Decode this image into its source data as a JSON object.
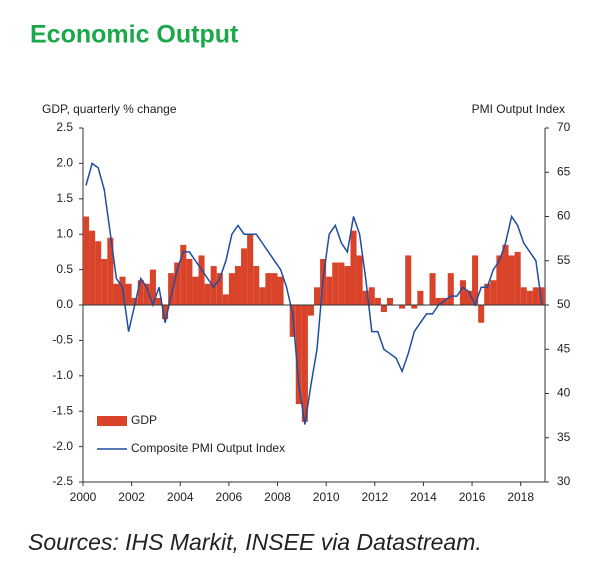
{
  "chart_data": {
    "type": "bar-line",
    "title": "Economic Output",
    "y_label": "GDP, quarterly % change",
    "y2_label": "PMI Output Index",
    "source": "Sources: IHS Markit, INSEE via Datastream.",
    "xlim": [
      2000,
      2019
    ],
    "xticks": [
      2000,
      2002,
      2004,
      2006,
      2008,
      2010,
      2012,
      2014,
      2016,
      2018
    ],
    "ylim": [
      -2.5,
      2.5
    ],
    "yticks": [
      2.5,
      {
        "value": 2,
        "label": "2.0"
      },
      1.5,
      {
        "value": 1,
        "label": "1.0"
      },
      0.5,
      {
        "value": 0,
        "label": "0.0"
      },
      -0.5,
      {
        "value": -1,
        "label": "-1.0"
      },
      -1.5,
      {
        "value": -2,
        "label": "-2.0"
      },
      -2.5
    ],
    "y2lim": [
      30,
      70
    ],
    "y2ticks": [
      70,
      65,
      60,
      55,
      50,
      45,
      40,
      35,
      30
    ],
    "legend": "lower left",
    "grid": false,
    "x": [
      2000.125,
      2000.375,
      2000.625,
      2000.875,
      2001.125,
      2001.375,
      2001.625,
      2001.875,
      2002.125,
      2002.375,
      2002.625,
      2002.875,
      2003.125,
      2003.375,
      2003.625,
      2003.875,
      2004.125,
      2004.375,
      2004.625,
      2004.875,
      2005.125,
      2005.375,
      2005.625,
      2005.875,
      2006.125,
      2006.375,
      2006.625,
      2006.875,
      2007.125,
      2007.375,
      2007.625,
      2007.875,
      2008.125,
      2008.375,
      2008.625,
      2008.875,
      2009.125,
      2009.375,
      2009.625,
      2009.875,
      2010.125,
      2010.375,
      2010.625,
      2010.875,
      2011.125,
      2011.375,
      2011.625,
      2011.875,
      2012.125,
      2012.375,
      2012.625,
      2012.875,
      2013.125,
      2013.375,
      2013.625,
      2013.875,
      2014.125,
      2014.375,
      2014.625,
      2014.875,
      2015.125,
      2015.375,
      2015.625,
      2015.875,
      2016.125,
      2016.375,
      2016.625,
      2016.875,
      2017.125,
      2017.375,
      2017.625,
      2017.875,
      2018.125,
      2018.375,
      2018.625,
      2018.875
    ],
    "series": [
      {
        "name": "GDP",
        "type": "bar",
        "color": "#d8432a",
        "values": [
          1.25,
          1.05,
          0.9,
          0.65,
          0.95,
          0.3,
          0.4,
          0.3,
          0.1,
          0.35,
          0.3,
          0.5,
          0.1,
          -0.2,
          0.45,
          0.6,
          0.85,
          0.65,
          0.4,
          0.7,
          0.3,
          0.55,
          0.45,
          0.15,
          0.45,
          0.55,
          0.8,
          1.0,
          0.55,
          0.25,
          0.45,
          0.45,
          0.4,
          0.0,
          -0.45,
          -1.4,
          -1.65,
          -0.15,
          0.25,
          0.65,
          0.4,
          0.6,
          0.6,
          0.55,
          1.05,
          0.7,
          0.2,
          0.25,
          0.1,
          -0.1,
          0.1,
          0.0,
          -0.05,
          0.7,
          -0.05,
          0.2,
          0.0,
          0.45,
          0.1,
          0.1,
          0.45,
          0.0,
          0.35,
          0.2,
          0.7,
          -0.25,
          0.3,
          0.35,
          0.7,
          0.85,
          0.7,
          0.75,
          0.25,
          0.2,
          0.25,
          0.25
        ]
      },
      {
        "name": "Composite PMI Output Index",
        "type": "line",
        "axis": "y2",
        "color": "#1f4e9e",
        "values": [
          63.5,
          66,
          65.5,
          63,
          58,
          53,
          52,
          47,
          50,
          53,
          52,
          50,
          52,
          48,
          51,
          54,
          56,
          56,
          55,
          54,
          53,
          52,
          53,
          55,
          58,
          59,
          58,
          58,
          58,
          57,
          56,
          55,
          54,
          52,
          49,
          41,
          36.5,
          41,
          45,
          53,
          58,
          59,
          57,
          56,
          60,
          58,
          53,
          47,
          47,
          45,
          44.5,
          44,
          42.5,
          44.5,
          47,
          48,
          49,
          49,
          50,
          50.5,
          51,
          51,
          52,
          51.5,
          50,
          52,
          52,
          54,
          55,
          57,
          60,
          59,
          57,
          56,
          55,
          50
        ]
      }
    ]
  }
}
